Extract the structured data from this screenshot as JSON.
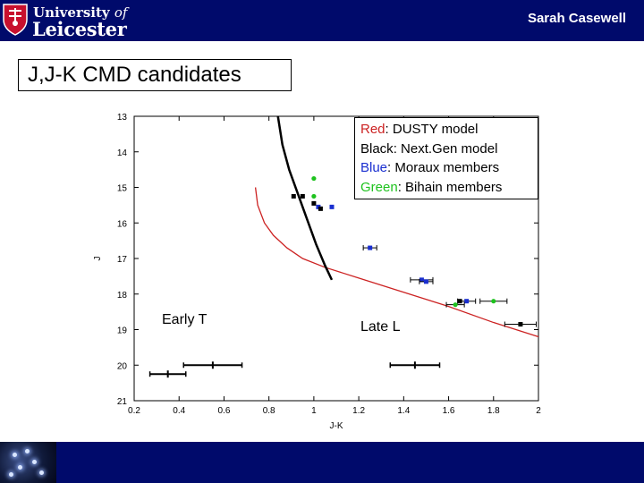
{
  "header": {
    "logo_line1": "University",
    "logo_of": "of",
    "logo_line2": "Leicester",
    "author": "Sarah Casewell"
  },
  "slide": {
    "title": "J,J-K CMD candidates"
  },
  "colors": {
    "bar": "#000a6b",
    "red": "#cc2222",
    "blue": "#1a2fd0",
    "green": "#1ec21e",
    "black": "#000000"
  },
  "icons": {
    "crest": "university-crest-icon",
    "thumbnail": "star-cluster-thumbnail"
  },
  "chart_data": {
    "type": "scatter",
    "xlabel": "J-K",
    "ylabel": "J",
    "xlim": [
      0.2,
      2.0
    ],
    "ylim": [
      21,
      13
    ],
    "y_inverted": true,
    "xticks": [
      0.2,
      0.4,
      0.6,
      0.8,
      1.0,
      1.2,
      1.4,
      1.6,
      1.8,
      2.0
    ],
    "xtick_labels": [
      "0.2",
      "0.4",
      "0.6",
      "0.8",
      "1",
      "1.2",
      "1.4",
      "1.6",
      "1.8",
      "2"
    ],
    "yticks": [
      13,
      14,
      15,
      16,
      17,
      18,
      19,
      20,
      21
    ],
    "ytick_labels": [
      "13",
      "14",
      "15",
      "16",
      "17",
      "18",
      "19",
      "20",
      "21"
    ],
    "legend": {
      "position": "top-right",
      "entries": [
        {
          "key": "Red",
          "rest": ": DUSTY model",
          "color": "red"
        },
        {
          "key": "Black",
          "rest": ": Next.Gen model",
          "color": "black"
        },
        {
          "key": "Blue",
          "rest": ": Moraux members",
          "color": "blue"
        },
        {
          "key": "Green",
          "rest": ": Bihain members",
          "color": "green"
        }
      ]
    },
    "annotations": [
      {
        "text": "Early T"
      },
      {
        "text": "Late L"
      }
    ],
    "series": [
      {
        "name": "DUSTY model",
        "type": "line",
        "color": "red",
        "x": [
          0.74,
          0.75,
          0.78,
          0.82,
          0.88,
          0.95,
          1.05,
          1.2,
          1.4,
          1.6,
          1.8,
          2.0
        ],
        "y": [
          15.0,
          15.5,
          16.0,
          16.35,
          16.7,
          17.0,
          17.25,
          17.55,
          17.95,
          18.35,
          18.8,
          19.2
        ]
      },
      {
        "name": "Next.Gen model",
        "type": "line",
        "color": "black",
        "x": [
          0.84,
          0.86,
          0.89,
          0.93,
          0.97,
          1.01,
          1.05,
          1.08
        ],
        "y": [
          13.0,
          13.8,
          14.5,
          15.2,
          15.9,
          16.6,
          17.2,
          17.6
        ]
      },
      {
        "name": "Moraux members",
        "type": "scatter",
        "color": "blue",
        "x": [
          1.02,
          1.08,
          1.25,
          1.48,
          1.5,
          1.68
        ],
        "y": [
          15.55,
          15.55,
          16.7,
          17.6,
          17.65,
          18.2
        ],
        "xerr": [
          0.0,
          0.0,
          0.03,
          0.05,
          0.03,
          0.04
        ]
      },
      {
        "name": "Bihain members",
        "type": "scatter",
        "color": "green",
        "x": [
          1.0,
          1.0,
          1.63,
          1.8,
          1.92
        ],
        "y": [
          14.75,
          15.25,
          18.3,
          18.2,
          18.85
        ],
        "xerr": [
          0.0,
          0.0,
          0.04,
          0.06,
          0.07
        ]
      },
      {
        "name": "Black candidates",
        "type": "scatter",
        "color": "black",
        "x": [
          0.91,
          0.95,
          1.0,
          1.03,
          1.65,
          1.92
        ],
        "y": [
          15.25,
          15.25,
          15.45,
          15.6,
          18.2,
          18.85
        ]
      },
      {
        "name": "Typical error bars",
        "type": "errorbar",
        "color": "black",
        "x": [
          0.35,
          0.55,
          1.45
        ],
        "y": [
          20.25,
          20.0,
          20.0
        ],
        "xerr": [
          0.08,
          0.13,
          0.11
        ]
      }
    ]
  }
}
